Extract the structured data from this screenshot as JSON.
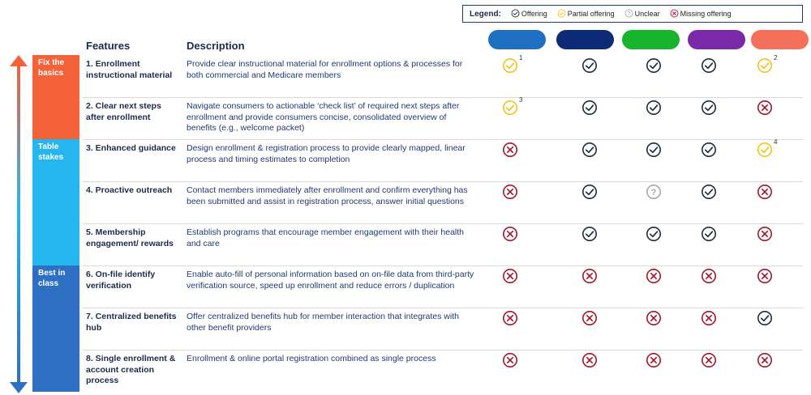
{
  "legend": {
    "title": "Legend:",
    "items": [
      {
        "status": "offering",
        "label": "Offering"
      },
      {
        "status": "partial",
        "label": "Partial offering"
      },
      {
        "status": "unclear",
        "label": "Unclear"
      },
      {
        "status": "missing",
        "label": "Missing offering"
      }
    ]
  },
  "headers": {
    "features": "Features",
    "description": "Description"
  },
  "provider_colors": [
    "#1f6fc2",
    "#0e2b78",
    "#16b52c",
    "#7a2aa8",
    "#f4705b"
  ],
  "bands": [
    {
      "label": "Fix the basics",
      "color": "#f4623a"
    },
    {
      "label": "Table stakes",
      "color": "#26b6ee"
    },
    {
      "label": "Best in class",
      "color": "#2d6fc0"
    }
  ],
  "status_colors": {
    "offering": "#1b2e3c",
    "partial": "#f0c419",
    "unclear": "#a8a8a8",
    "missing": "#a3182a"
  },
  "rows": [
    {
      "feature": "1. Enrollment instructional material",
      "description": "Provide clear instructional material for enrollment options & processes for both commercial and Medicare members",
      "cells": [
        {
          "s": "partial",
          "sup": "1"
        },
        {
          "s": "offering",
          "sup": ""
        },
        {
          "s": "offering",
          "sup": ""
        },
        {
          "s": "offering",
          "sup": ""
        },
        {
          "s": "partial",
          "sup": "2"
        }
      ]
    },
    {
      "feature": "2. Clear next steps after enrollment",
      "description": "Navigate consumers to actionable ‘check list’ of required next steps after enrollment and provide consumers concise, consolidated overview of benefits (e.g., welcome packet)",
      "cells": [
        {
          "s": "partial",
          "sup": "3"
        },
        {
          "s": "offering",
          "sup": ""
        },
        {
          "s": "offering",
          "sup": ""
        },
        {
          "s": "offering",
          "sup": ""
        },
        {
          "s": "missing",
          "sup": ""
        }
      ]
    },
    {
      "feature": "3. Enhanced guidance",
      "description": "Design enrollment & registration process to provide clearly mapped, linear process and timing estimates to completion",
      "cells": [
        {
          "s": "missing",
          "sup": ""
        },
        {
          "s": "offering",
          "sup": ""
        },
        {
          "s": "offering",
          "sup": ""
        },
        {
          "s": "offering",
          "sup": ""
        },
        {
          "s": "partial",
          "sup": "4"
        }
      ]
    },
    {
      "feature": "4. Proactive outreach",
      "description": "Contact members immediately after enrollment and confirm everything has been submitted and assist in registration process, answer initial questions",
      "cells": [
        {
          "s": "missing",
          "sup": ""
        },
        {
          "s": "offering",
          "sup": ""
        },
        {
          "s": "unclear",
          "sup": ""
        },
        {
          "s": "offering",
          "sup": ""
        },
        {
          "s": "missing",
          "sup": ""
        }
      ]
    },
    {
      "feature": "5. Membership engagement/ rewards",
      "description": "Establish programs that encourage member engagement with their health and care",
      "cells": [
        {
          "s": "missing",
          "sup": ""
        },
        {
          "s": "offering",
          "sup": ""
        },
        {
          "s": "offering",
          "sup": ""
        },
        {
          "s": "offering",
          "sup": ""
        },
        {
          "s": "missing",
          "sup": ""
        }
      ]
    },
    {
      "feature": "6. On-file identify verification",
      "description": "Enable auto-fill of personal information based on on-file data from third-party verification source, speed up enrollment and reduce errors / duplication",
      "cells": [
        {
          "s": "missing",
          "sup": ""
        },
        {
          "s": "missing",
          "sup": ""
        },
        {
          "s": "missing",
          "sup": ""
        },
        {
          "s": "missing",
          "sup": ""
        },
        {
          "s": "missing",
          "sup": ""
        }
      ]
    },
    {
      "feature": "7. Centralized benefits hub",
      "description": "Offer centralized benefits hub for member interaction that integrates with other benefit providers",
      "cells": [
        {
          "s": "missing",
          "sup": ""
        },
        {
          "s": "missing",
          "sup": ""
        },
        {
          "s": "missing",
          "sup": ""
        },
        {
          "s": "missing",
          "sup": ""
        },
        {
          "s": "offering",
          "sup": ""
        }
      ]
    },
    {
      "feature": "8. Single enrollment & account creation process",
      "description": "Enrollment & online portal registration combined as single process",
      "cells": [
        {
          "s": "missing",
          "sup": ""
        },
        {
          "s": "missing",
          "sup": ""
        },
        {
          "s": "missing",
          "sup": ""
        },
        {
          "s": "missing",
          "sup": ""
        },
        {
          "s": "missing",
          "sup": ""
        }
      ]
    }
  ]
}
